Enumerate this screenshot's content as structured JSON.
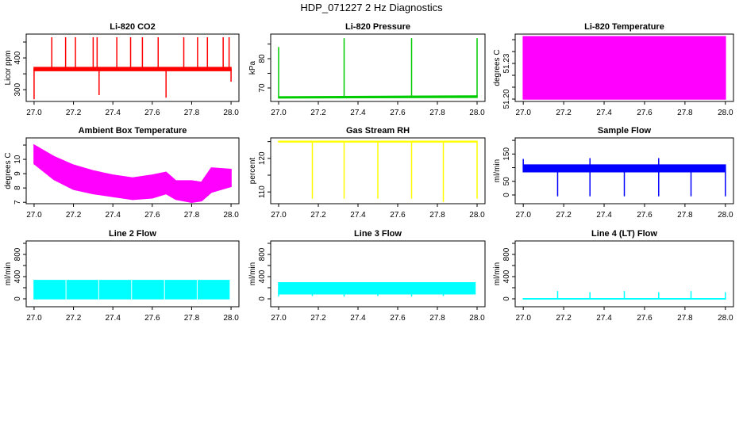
{
  "title": "HDP_071227  2 Hz Diagnostics",
  "chart_data": [
    {
      "type": "line",
      "title": "Li-820 CO2",
      "xlabel": "",
      "ylabel": "Licor ppm",
      "color": "#ff0000",
      "xlim": [
        26.96,
        28.04
      ],
      "ylim": [
        263,
        475
      ],
      "xticks": [
        27.0,
        27.2,
        27.4,
        27.6,
        27.8,
        28.0
      ],
      "yticks": [
        300,
        350,
        400,
        450
      ],
      "ytick_labels": [
        "300",
        "",
        "400",
        ""
      ],
      "band": {
        "x": [
          27.0,
          28.0
        ],
        "low": [
          360,
          360
        ],
        "high": [
          370,
          370
        ]
      },
      "spikes": [
        [
          27.0,
          270
        ],
        [
          27.09,
          465
        ],
        [
          27.16,
          465
        ],
        [
          27.21,
          465
        ],
        [
          27.3,
          465
        ],
        [
          27.32,
          465
        ],
        [
          27.33,
          283
        ],
        [
          27.42,
          465
        ],
        [
          27.49,
          465
        ],
        [
          27.55,
          465
        ],
        [
          27.63,
          465
        ],
        [
          27.67,
          275
        ],
        [
          27.76,
          465
        ],
        [
          27.83,
          465
        ],
        [
          27.88,
          465
        ],
        [
          27.96,
          465
        ],
        [
          27.99,
          465
        ],
        [
          28.0,
          325
        ]
      ]
    },
    {
      "type": "line",
      "title": "Li-820 Pressure",
      "xlabel": "",
      "ylabel": "kPa",
      "color": "#00cc00",
      "xlim": [
        26.96,
        28.04
      ],
      "ylim": [
        65.4,
        88.4
      ],
      "xticks": [
        27.0,
        27.2,
        27.4,
        27.6,
        27.8,
        28.0
      ],
      "yticks": [
        70,
        75,
        80,
        85
      ],
      "ytick_labels": [
        "70",
        "",
        "80",
        ""
      ],
      "band": {
        "x": [
          27.0,
          28.0
        ],
        "low": [
          66.6,
          66.8
        ],
        "high": [
          67.0,
          67.3
        ]
      },
      "spikes": [
        [
          27.0,
          84
        ],
        [
          27.33,
          87
        ],
        [
          27.67,
          87
        ],
        [
          28.0,
          87
        ]
      ]
    },
    {
      "type": "line",
      "title": "Li-820 Temperature",
      "xlabel": "",
      "ylabel": "degrees C",
      "color": "#ff00ff",
      "xlim": [
        26.96,
        28.04
      ],
      "ylim": [
        51.198,
        51.2547
      ],
      "xticks": [
        27.0,
        27.2,
        27.4,
        27.6,
        27.8,
        28.0
      ],
      "yticks": [
        51.2,
        51.21,
        51.22,
        51.23,
        51.24,
        51.25
      ],
      "ytick_labels": [
        "51.20",
        "",
        "",
        "51.23",
        "",
        ""
      ],
      "band": {
        "x": [
          27.0,
          28.0
        ],
        "low": [
          51.2,
          51.2
        ],
        "high": [
          51.2525,
          51.2525
        ]
      },
      "spikes": []
    },
    {
      "type": "line",
      "title": "Ambient Box Temperature",
      "xlabel": "",
      "ylabel": "degrees C",
      "color": "#ff00ff",
      "xlim": [
        26.96,
        28.04
      ],
      "ylim": [
        6.9,
        11.5
      ],
      "xticks": [
        27.0,
        27.2,
        27.4,
        27.6,
        27.8,
        28.0
      ],
      "yticks": [
        7,
        8,
        9,
        10,
        11
      ],
      "ytick_labels": [
        "7",
        "8",
        "9",
        "10",
        ""
      ],
      "band": {
        "x": [
          27.0,
          27.1,
          27.2,
          27.3,
          27.4,
          27.5,
          27.6,
          27.67,
          27.72,
          27.8,
          27.85,
          27.9,
          28.0
        ],
        "low": [
          9.7,
          8.6,
          7.9,
          7.6,
          7.4,
          7.2,
          7.3,
          7.6,
          7.2,
          7.0,
          7.1,
          7.7,
          8.1
        ],
        "high": [
          11.0,
          10.2,
          9.6,
          9.2,
          8.9,
          8.7,
          8.9,
          9.1,
          8.5,
          8.5,
          8.4,
          9.4,
          9.3
        ]
      },
      "spikes": []
    },
    {
      "type": "line",
      "title": "Gas Stream RH",
      "xlabel": "",
      "ylabel": "percent",
      "color": "#ffff00",
      "xlim": [
        26.96,
        28.04
      ],
      "ylim": [
        106.5,
        126.1
      ],
      "xticks": [
        27.0,
        27.2,
        27.4,
        27.6,
        27.8,
        28.0
      ],
      "yticks": [
        110,
        115,
        120,
        125
      ],
      "ytick_labels": [
        "110",
        "",
        "120",
        ""
      ],
      "band": {
        "x": [
          27.0,
          28.0
        ],
        "low": [
          124.9,
          124.9
        ],
        "high": [
          125.1,
          125.1
        ]
      },
      "spikes": [
        [
          27.17,
          108
        ],
        [
          27.33,
          108
        ],
        [
          27.5,
          108
        ],
        [
          27.67,
          108
        ],
        [
          27.83,
          107
        ],
        [
          28.0,
          108
        ]
      ]
    },
    {
      "type": "line",
      "title": "Sample Flow",
      "xlabel": "",
      "ylabel": "ml/min",
      "color": "#0000ff",
      "xlim": [
        26.96,
        28.04
      ],
      "ylim": [
        -32,
        209
      ],
      "xticks": [
        27.0,
        27.2,
        27.4,
        27.6,
        27.8,
        28.0
      ],
      "yticks": [
        0,
        50,
        100,
        150,
        200
      ],
      "ytick_labels": [
        "0",
        "50",
        "",
        "150",
        ""
      ],
      "band": {
        "x": [
          27.0,
          28.0
        ],
        "low": [
          85,
          85
        ],
        "high": [
          110,
          110
        ]
      },
      "spikes": [
        [
          27.0,
          132
        ],
        [
          27.17,
          -5
        ],
        [
          27.33,
          135
        ],
        [
          27.33,
          -5
        ],
        [
          27.5,
          -5
        ],
        [
          27.67,
          135
        ],
        [
          27.67,
          -5
        ],
        [
          27.83,
          -5
        ],
        [
          28.0,
          -5
        ]
      ]
    },
    {
      "type": "line",
      "title": "Line 2 Flow",
      "xlabel": "",
      "ylabel": "ml/min",
      "color": "#00ffff",
      "xlim": [
        26.96,
        28.04
      ],
      "ylim": [
        -143,
        1043
      ],
      "xticks": [
        27.0,
        27.2,
        27.4,
        27.6,
        27.8,
        28.0
      ],
      "yticks": [
        0,
        200,
        400,
        600,
        800,
        1000
      ],
      "ytick_labels": [
        "0",
        "",
        "400",
        "",
        "800",
        ""
      ],
      "segments": [
        [
          27.0,
          27.157
        ],
        [
          27.167,
          27.323
        ],
        [
          27.333,
          27.49
        ],
        [
          27.5,
          27.657
        ],
        [
          27.667,
          27.823
        ],
        [
          27.833,
          27.99
        ]
      ],
      "band": {
        "x": [
          27.0,
          28.0
        ],
        "low": [
          0,
          0
        ],
        "high": [
          330,
          330
        ]
      },
      "spikes": []
    },
    {
      "type": "line",
      "title": "Line 3 Flow",
      "xlabel": "",
      "ylabel": "ml/min",
      "color": "#00ffff",
      "xlim": [
        26.96,
        28.04
      ],
      "ylim": [
        -143,
        1043
      ],
      "xticks": [
        27.0,
        27.2,
        27.4,
        27.6,
        27.8,
        28.0
      ],
      "yticks": [
        0,
        200,
        400,
        600,
        800,
        1000
      ],
      "ytick_labels": [
        "0",
        "",
        "400",
        "",
        "800",
        ""
      ],
      "band": {
        "x": [
          27.0,
          27.99
        ],
        "low": [
          90,
          90
        ],
        "high": [
          290,
          290
        ]
      },
      "spikes": [
        [
          27.0,
          40
        ],
        [
          27.17,
          50
        ],
        [
          27.33,
          40
        ],
        [
          27.5,
          50
        ],
        [
          27.67,
          40
        ],
        [
          27.83,
          50
        ]
      ]
    },
    {
      "type": "line",
      "title": "Line 4 (LT) Flow",
      "xlabel": "",
      "ylabel": "ml/min",
      "color": "#00ffff",
      "xlim": [
        26.96,
        28.04
      ],
      "ylim": [
        -143,
        1043
      ],
      "xticks": [
        27.0,
        27.2,
        27.4,
        27.6,
        27.8,
        28.0
      ],
      "yticks": [
        0,
        200,
        400,
        600,
        800,
        1000
      ],
      "ytick_labels": [
        "0",
        "",
        "400",
        "",
        "800",
        ""
      ],
      "band": {
        "x": [
          27.0,
          28.0
        ],
        "low": [
          -3,
          -3
        ],
        "high": [
          3,
          3
        ]
      },
      "spikes": [
        [
          27.17,
          140
        ],
        [
          27.33,
          120
        ],
        [
          27.5,
          140
        ],
        [
          27.67,
          120
        ],
        [
          27.83,
          140
        ],
        [
          28.0,
          120
        ]
      ]
    }
  ]
}
